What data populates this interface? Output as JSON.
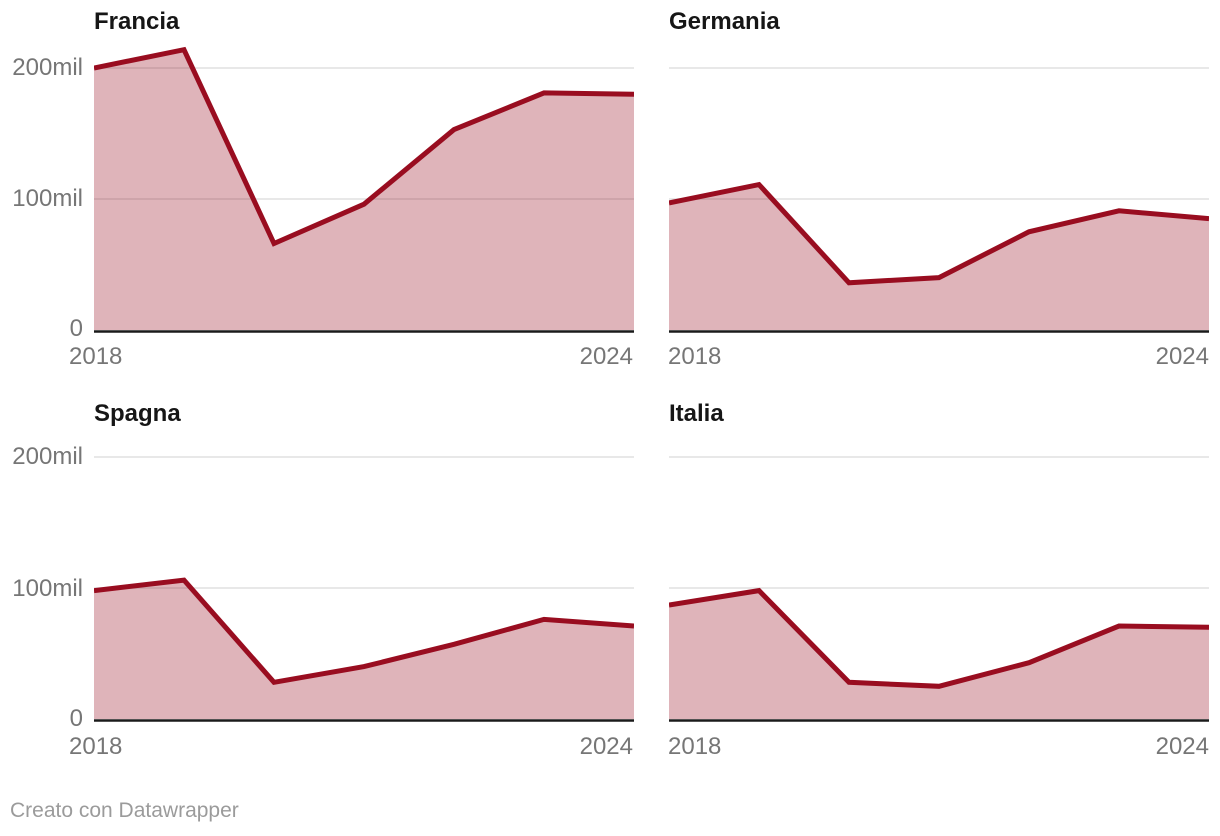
{
  "footer": {
    "credit": "Creato con Datawrapper"
  },
  "colors": {
    "line": "#990d20",
    "fill_opacity": 0.31,
    "grid": "#e0e0e0",
    "axis": "#1a1a1a",
    "tick_text": "#767676",
    "title_text": "#161616",
    "credit_text": "#9b9b9b"
  },
  "chart_data": [
    {
      "type": "area",
      "title": "Francia",
      "unit": "mil",
      "x": [
        2018,
        2019,
        2020,
        2021,
        2022,
        2023,
        2024
      ],
      "values": [
        200,
        214,
        66,
        96,
        153,
        181,
        180
      ],
      "ylim": [
        0,
        224
      ],
      "y_ticks": [
        0,
        100,
        200
      ],
      "y_tick_labels": [
        "0",
        "100mil",
        "200mil"
      ],
      "x_tick_labels": [
        "2018",
        "2024"
      ],
      "y_axis_labels_visible": true,
      "grid": true,
      "legend": "none"
    },
    {
      "type": "area",
      "title": "Germania",
      "unit": "mil",
      "x": [
        2018,
        2019,
        2020,
        2021,
        2022,
        2023,
        2024
      ],
      "values": [
        97,
        111,
        36,
        40,
        75,
        91,
        85
      ],
      "ylim": [
        0,
        224
      ],
      "y_ticks": [
        0,
        100,
        200
      ],
      "y_tick_labels": [
        "0",
        "100mil",
        "200mil"
      ],
      "x_tick_labels": [
        "2018",
        "2024"
      ],
      "y_axis_labels_visible": false,
      "grid": true,
      "legend": "none"
    },
    {
      "type": "area",
      "title": "Spagna",
      "unit": "mil",
      "x": [
        2018,
        2019,
        2020,
        2021,
        2022,
        2023,
        2024
      ],
      "values": [
        98,
        106,
        28,
        40,
        57,
        76,
        71
      ],
      "ylim": [
        0,
        224
      ],
      "y_ticks": [
        0,
        100,
        200
      ],
      "y_tick_labels": [
        "0",
        "100mil",
        "200mil"
      ],
      "x_tick_labels": [
        "2018",
        "2024"
      ],
      "y_axis_labels_visible": true,
      "grid": true,
      "legend": "none"
    },
    {
      "type": "area",
      "title": "Italia",
      "unit": "mil",
      "x": [
        2018,
        2019,
        2020,
        2021,
        2022,
        2023,
        2024
      ],
      "values": [
        87,
        98,
        28,
        25,
        43,
        71,
        70
      ],
      "ylim": [
        0,
        224
      ],
      "y_ticks": [
        0,
        100,
        200
      ],
      "y_tick_labels": [
        "0",
        "100mil",
        "200mil"
      ],
      "x_tick_labels": [
        "2018",
        "2024"
      ],
      "y_axis_labels_visible": false,
      "grid": true,
      "legend": "none"
    }
  ]
}
